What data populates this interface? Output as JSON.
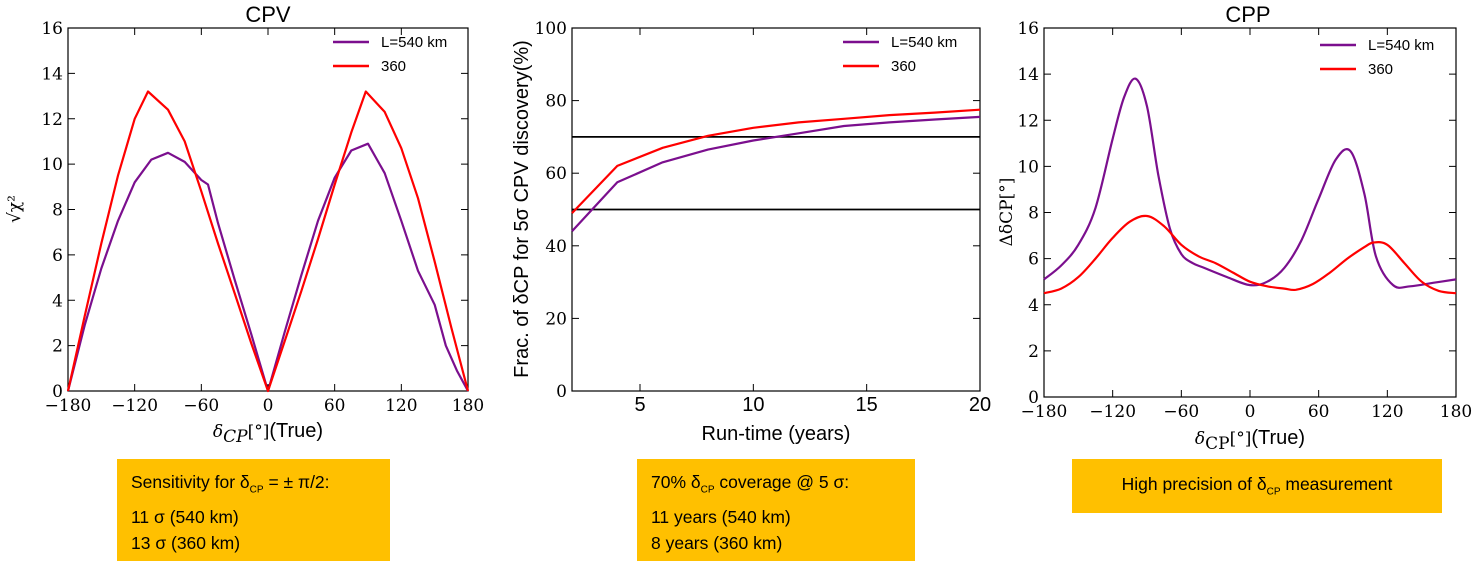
{
  "chart_data": [
    {
      "type": "line",
      "title": "CPV",
      "xlabel_suffix": "(True)",
      "ylabel": "√χ²",
      "xlim": [
        -180,
        180
      ],
      "ylim": [
        0,
        16
      ],
      "xticks": [
        "−180",
        "−120",
        "−60",
        "0",
        "60",
        "120",
        "180"
      ],
      "yticks": [
        "0",
        "2",
        "4",
        "6",
        "8",
        "10",
        "12",
        "14",
        "16"
      ],
      "legend": "top-right",
      "grid": false,
      "series": [
        {
          "name": "L=540 km",
          "color": "#7b0f8e",
          "x": [
            -180,
            -165,
            -150,
            -135,
            -120,
            -105,
            -90,
            -75,
            -60,
            -54,
            -45,
            -30,
            -15,
            0,
            15,
            30,
            45,
            60,
            75,
            90,
            105,
            120,
            135,
            150,
            160,
            170,
            180
          ],
          "y": [
            0,
            2.9,
            5.4,
            7.5,
            9.2,
            10.2,
            10.5,
            10.1,
            9.3,
            9.1,
            7.4,
            4.9,
            2.5,
            0,
            2.6,
            5.1,
            7.5,
            9.4,
            10.6,
            10.9,
            9.6,
            7.5,
            5.3,
            3.8,
            2.0,
            0.9,
            0
          ]
        },
        {
          "name": "360",
          "color": "#ff0000",
          "x": [
            -180,
            -165,
            -150,
            -135,
            -120,
            -108,
            -90,
            -75,
            -60,
            -45,
            -30,
            -15,
            0,
            15,
            30,
            45,
            60,
            75,
            88,
            105,
            120,
            135,
            150,
            165,
            180
          ],
          "y": [
            0,
            3.3,
            6.5,
            9.5,
            12.0,
            13.2,
            12.4,
            11.0,
            8.8,
            6.5,
            4.3,
            2.1,
            0,
            2.2,
            4.4,
            6.7,
            9.1,
            11.4,
            13.2,
            12.3,
            10.7,
            8.5,
            5.7,
            2.8,
            0
          ]
        }
      ]
    },
    {
      "type": "line",
      "title": "",
      "xlabel": "Run-time (years)",
      "ylabel": "Frac. of δCP for 5σ CPV discovery(%)",
      "xlim": [
        2,
        20
      ],
      "ylim": [
        0,
        100
      ],
      "xticks": [
        5,
        10,
        15,
        20
      ],
      "yticks": [
        0,
        20,
        40,
        60,
        80,
        100
      ],
      "legend": "top-right",
      "grid": false,
      "hlines": [
        50,
        70
      ],
      "series": [
        {
          "name": "L=540 km",
          "color": "#7b0f8e",
          "x": [
            2,
            4,
            6,
            8,
            10,
            12,
            14,
            16,
            18,
            20
          ],
          "y": [
            44,
            57.5,
            63,
            66.5,
            69,
            71,
            73,
            74,
            74.8,
            75.5
          ]
        },
        {
          "name": "360",
          "color": "#ff0000",
          "x": [
            2,
            4,
            6,
            8,
            10,
            12,
            14,
            16,
            18,
            20
          ],
          "y": [
            49,
            62,
            67,
            70.3,
            72.5,
            74,
            75,
            76,
            76.7,
            77.5
          ]
        }
      ]
    },
    {
      "type": "line",
      "title": "CPP",
      "xlabel_suffix": "(True)",
      "ylabel": "ΔδCP[°]",
      "xlim": [
        -180,
        180
      ],
      "ylim": [
        0,
        16
      ],
      "xticks": [
        "−180",
        "−120",
        "−60",
        "0",
        "60",
        "120",
        "180"
      ],
      "yticks": [
        "0",
        "2",
        "4",
        "6",
        "8",
        "10",
        "12",
        "14",
        "16"
      ],
      "legend": "top-right",
      "grid": false,
      "series": [
        {
          "name": "L=540 km",
          "color": "#7b0f8e",
          "x": [
            -180,
            -165,
            -150,
            -135,
            -120,
            -110,
            -100,
            -90,
            -80,
            -70,
            -60,
            -50,
            -40,
            -20,
            0,
            15,
            30,
            45,
            60,
            75,
            88,
            100,
            110,
            125,
            140,
            160,
            180
          ],
          "y": [
            5.1,
            5.7,
            6.6,
            8.2,
            11.2,
            13.0,
            13.8,
            12.6,
            9.6,
            7.3,
            6.2,
            5.8,
            5.6,
            5.2,
            4.85,
            5.0,
            5.6,
            6.8,
            8.6,
            10.3,
            10.65,
            8.8,
            6.1,
            4.85,
            4.8,
            4.95,
            5.1
          ]
        },
        {
          "name": "360",
          "color": "#ff0000",
          "x": [
            -180,
            -165,
            -150,
            -135,
            -120,
            -105,
            -90,
            -75,
            -60,
            -45,
            -30,
            -15,
            0,
            15,
            30,
            40,
            55,
            70,
            85,
            100,
            108,
            120,
            135,
            150,
            165,
            180
          ],
          "y": [
            4.5,
            4.7,
            5.2,
            6.0,
            6.9,
            7.6,
            7.85,
            7.4,
            6.6,
            6.1,
            5.8,
            5.4,
            5.0,
            4.8,
            4.7,
            4.65,
            4.9,
            5.4,
            6.0,
            6.5,
            6.7,
            6.6,
            5.8,
            5.0,
            4.6,
            4.5
          ]
        }
      ]
    }
  ],
  "notes": [
    {
      "lines": [
        "Sensitivity for δ",
        "CP",
        " = ± π/2:",
        "11 σ (540 km)",
        "13 σ (360 km)"
      ]
    },
    {
      "lines": [
        "70%  δ",
        "CP",
        " coverage @ 5 σ:",
        "11 years (540 km)",
        "8 years (360 km)"
      ]
    },
    {
      "lines": [
        "High precision of δ",
        "CP",
        " measurement"
      ]
    }
  ]
}
